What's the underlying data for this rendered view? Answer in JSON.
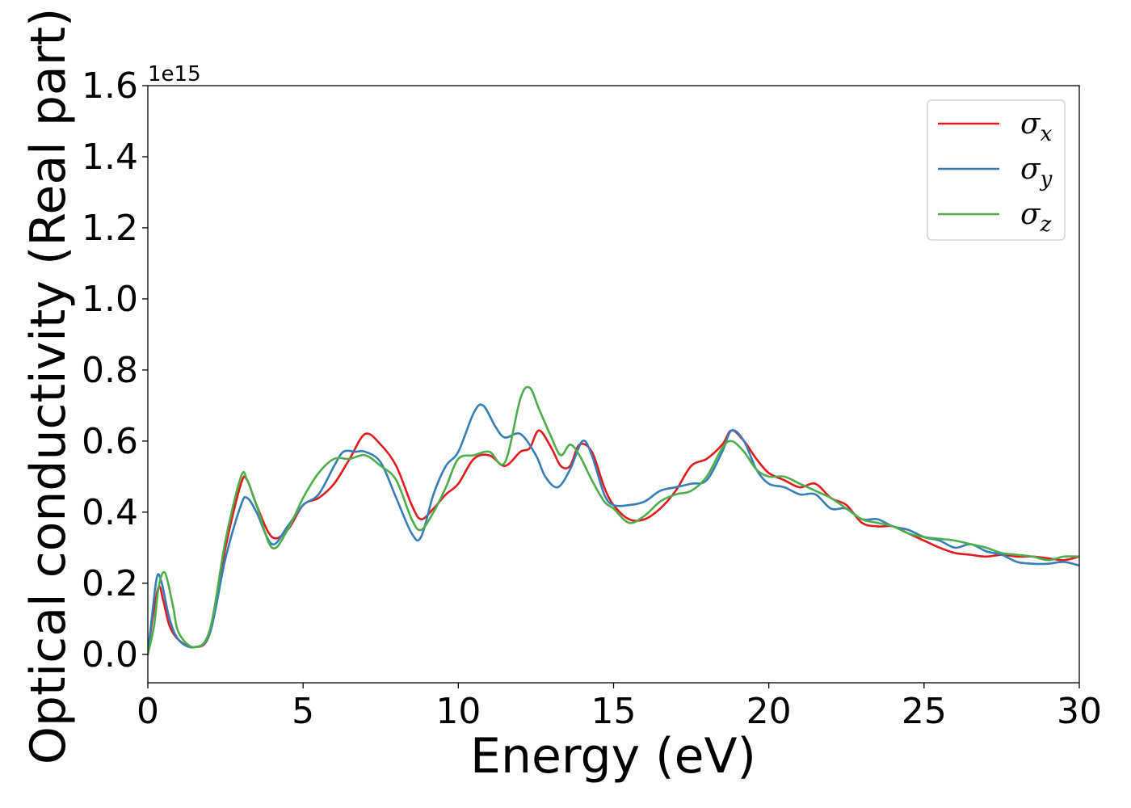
{
  "chart_data": {
    "type": "line",
    "xlabel": "Energy (eV)",
    "ylabel": "Optical conductivity (Real part)",
    "y_offset_label": "1e15",
    "xlim": [
      0,
      30
    ],
    "ylim": [
      -0.08,
      1.6
    ],
    "xticks": [
      0,
      5,
      10,
      15,
      20,
      25,
      30
    ],
    "xtick_labels": [
      "0",
      "5",
      "10",
      "15",
      "20",
      "25",
      "30"
    ],
    "yticks": [
      0.0,
      0.2,
      0.4,
      0.6,
      0.8,
      1.0,
      1.2,
      1.4,
      1.6
    ],
    "ytick_labels": [
      "0.0",
      "0.2",
      "0.4",
      "0.6",
      "0.8",
      "1.0",
      "1.2",
      "1.4",
      "1.6"
    ],
    "grid": false,
    "legend_position": "top-right",
    "series": [
      {
        "name": "σ_x",
        "label_base": "σ",
        "label_sub": "x",
        "color": "#e41a1c",
        "points": [
          [
            0,
            0.0
          ],
          [
            0.15,
            0.1
          ],
          [
            0.35,
            0.19
          ],
          [
            0.5,
            0.15
          ],
          [
            0.7,
            0.08
          ],
          [
            1.0,
            0.04
          ],
          [
            1.5,
            0.02
          ],
          [
            2.0,
            0.06
          ],
          [
            2.5,
            0.3
          ],
          [
            3.0,
            0.48
          ],
          [
            3.2,
            0.49
          ],
          [
            3.5,
            0.42
          ],
          [
            4.0,
            0.33
          ],
          [
            4.5,
            0.35
          ],
          [
            5.0,
            0.42
          ],
          [
            5.5,
            0.44
          ],
          [
            6.0,
            0.48
          ],
          [
            6.5,
            0.55
          ],
          [
            7.0,
            0.62
          ],
          [
            7.5,
            0.59
          ],
          [
            8.0,
            0.53
          ],
          [
            8.5,
            0.42
          ],
          [
            8.8,
            0.38
          ],
          [
            9.2,
            0.41
          ],
          [
            9.6,
            0.45
          ],
          [
            10.0,
            0.48
          ],
          [
            10.5,
            0.55
          ],
          [
            11.0,
            0.56
          ],
          [
            11.5,
            0.53
          ],
          [
            12.0,
            0.57
          ],
          [
            12.3,
            0.58
          ],
          [
            12.6,
            0.63
          ],
          [
            13.0,
            0.58
          ],
          [
            13.3,
            0.53
          ],
          [
            13.6,
            0.53
          ],
          [
            13.9,
            0.59
          ],
          [
            14.3,
            0.57
          ],
          [
            14.7,
            0.47
          ],
          [
            15.0,
            0.42
          ],
          [
            15.5,
            0.38
          ],
          [
            16.0,
            0.38
          ],
          [
            16.5,
            0.41
          ],
          [
            17.0,
            0.46
          ],
          [
            17.5,
            0.53
          ],
          [
            18.0,
            0.55
          ],
          [
            18.5,
            0.59
          ],
          [
            18.8,
            0.63
          ],
          [
            19.2,
            0.6
          ],
          [
            19.6,
            0.55
          ],
          [
            20.0,
            0.51
          ],
          [
            20.5,
            0.49
          ],
          [
            21.0,
            0.47
          ],
          [
            21.5,
            0.48
          ],
          [
            22.0,
            0.44
          ],
          [
            22.5,
            0.42
          ],
          [
            23.0,
            0.37
          ],
          [
            23.5,
            0.36
          ],
          [
            24.0,
            0.36
          ],
          [
            24.5,
            0.34
          ],
          [
            25.0,
            0.32
          ],
          [
            25.5,
            0.3
          ],
          [
            26.0,
            0.285
          ],
          [
            26.5,
            0.28
          ],
          [
            27.0,
            0.275
          ],
          [
            27.5,
            0.28
          ],
          [
            28.0,
            0.275
          ],
          [
            28.5,
            0.275
          ],
          [
            29.0,
            0.27
          ],
          [
            29.5,
            0.265
          ],
          [
            30.0,
            0.275
          ]
        ]
      },
      {
        "name": "σ_y",
        "label_base": "σ",
        "label_sub": "y",
        "color": "#377eb8",
        "points": [
          [
            0,
            0.0
          ],
          [
            0.15,
            0.12
          ],
          [
            0.3,
            0.22
          ],
          [
            0.45,
            0.2
          ],
          [
            0.7,
            0.1
          ],
          [
            1.0,
            0.04
          ],
          [
            1.5,
            0.02
          ],
          [
            2.0,
            0.06
          ],
          [
            2.5,
            0.27
          ],
          [
            3.0,
            0.42
          ],
          [
            3.2,
            0.44
          ],
          [
            3.5,
            0.4
          ],
          [
            4.0,
            0.31
          ],
          [
            4.5,
            0.36
          ],
          [
            5.0,
            0.42
          ],
          [
            5.5,
            0.45
          ],
          [
            6.0,
            0.53
          ],
          [
            6.3,
            0.57
          ],
          [
            6.7,
            0.57
          ],
          [
            7.0,
            0.57
          ],
          [
            7.5,
            0.54
          ],
          [
            8.0,
            0.44
          ],
          [
            8.5,
            0.34
          ],
          [
            8.8,
            0.33
          ],
          [
            9.2,
            0.45
          ],
          [
            9.6,
            0.53
          ],
          [
            10.0,
            0.57
          ],
          [
            10.5,
            0.68
          ],
          [
            10.8,
            0.7
          ],
          [
            11.2,
            0.64
          ],
          [
            11.5,
            0.61
          ],
          [
            12.0,
            0.62
          ],
          [
            12.5,
            0.56
          ],
          [
            12.8,
            0.5
          ],
          [
            13.2,
            0.47
          ],
          [
            13.6,
            0.52
          ],
          [
            14.0,
            0.6
          ],
          [
            14.3,
            0.56
          ],
          [
            14.7,
            0.45
          ],
          [
            15.0,
            0.42
          ],
          [
            15.5,
            0.42
          ],
          [
            16.0,
            0.43
          ],
          [
            16.5,
            0.46
          ],
          [
            17.0,
            0.47
          ],
          [
            17.5,
            0.48
          ],
          [
            18.0,
            0.49
          ],
          [
            18.5,
            0.57
          ],
          [
            18.8,
            0.63
          ],
          [
            19.2,
            0.6
          ],
          [
            19.6,
            0.52
          ],
          [
            20.0,
            0.48
          ],
          [
            20.5,
            0.47
          ],
          [
            21.0,
            0.45
          ],
          [
            21.5,
            0.45
          ],
          [
            22.0,
            0.41
          ],
          [
            22.5,
            0.41
          ],
          [
            23.0,
            0.38
          ],
          [
            23.5,
            0.38
          ],
          [
            24.0,
            0.36
          ],
          [
            24.5,
            0.35
          ],
          [
            25.0,
            0.33
          ],
          [
            25.5,
            0.32
          ],
          [
            26.0,
            0.3
          ],
          [
            26.5,
            0.31
          ],
          [
            27.0,
            0.29
          ],
          [
            27.5,
            0.28
          ],
          [
            28.0,
            0.26
          ],
          [
            28.5,
            0.255
          ],
          [
            29.0,
            0.255
          ],
          [
            29.5,
            0.26
          ],
          [
            30.0,
            0.25
          ]
        ]
      },
      {
        "name": "σ_z",
        "label_base": "σ",
        "label_sub": "z",
        "color": "#4daf4a",
        "points": [
          [
            0,
            0.0
          ],
          [
            0.2,
            0.08
          ],
          [
            0.35,
            0.19
          ],
          [
            0.55,
            0.23
          ],
          [
            0.8,
            0.14
          ],
          [
            1.0,
            0.06
          ],
          [
            1.5,
            0.02
          ],
          [
            2.0,
            0.07
          ],
          [
            2.5,
            0.32
          ],
          [
            3.0,
            0.5
          ],
          [
            3.2,
            0.49
          ],
          [
            3.5,
            0.42
          ],
          [
            4.0,
            0.3
          ],
          [
            4.5,
            0.35
          ],
          [
            5.0,
            0.44
          ],
          [
            5.5,
            0.51
          ],
          [
            6.0,
            0.55
          ],
          [
            6.5,
            0.55
          ],
          [
            7.0,
            0.56
          ],
          [
            7.5,
            0.53
          ],
          [
            8.0,
            0.49
          ],
          [
            8.5,
            0.38
          ],
          [
            8.8,
            0.35
          ],
          [
            9.2,
            0.4
          ],
          [
            9.6,
            0.47
          ],
          [
            10.0,
            0.55
          ],
          [
            10.5,
            0.56
          ],
          [
            11.0,
            0.57
          ],
          [
            11.5,
            0.54
          ],
          [
            12.0,
            0.72
          ],
          [
            12.3,
            0.75
          ],
          [
            12.6,
            0.69
          ],
          [
            13.0,
            0.61
          ],
          [
            13.3,
            0.56
          ],
          [
            13.6,
            0.59
          ],
          [
            13.9,
            0.56
          ],
          [
            14.3,
            0.49
          ],
          [
            14.7,
            0.43
          ],
          [
            15.0,
            0.41
          ],
          [
            15.5,
            0.37
          ],
          [
            16.0,
            0.39
          ],
          [
            16.5,
            0.43
          ],
          [
            17.0,
            0.45
          ],
          [
            17.5,
            0.46
          ],
          [
            18.0,
            0.5
          ],
          [
            18.5,
            0.58
          ],
          [
            18.8,
            0.6
          ],
          [
            19.2,
            0.57
          ],
          [
            19.6,
            0.52
          ],
          [
            20.0,
            0.5
          ],
          [
            20.5,
            0.5
          ],
          [
            21.0,
            0.48
          ],
          [
            21.5,
            0.46
          ],
          [
            22.0,
            0.44
          ],
          [
            22.5,
            0.41
          ],
          [
            23.0,
            0.38
          ],
          [
            23.5,
            0.37
          ],
          [
            24.0,
            0.36
          ],
          [
            24.5,
            0.34
          ],
          [
            25.0,
            0.33
          ],
          [
            25.5,
            0.325
          ],
          [
            26.0,
            0.32
          ],
          [
            26.5,
            0.31
          ],
          [
            27.0,
            0.3
          ],
          [
            27.5,
            0.285
          ],
          [
            28.0,
            0.28
          ],
          [
            28.5,
            0.275
          ],
          [
            29.0,
            0.265
          ],
          [
            29.5,
            0.275
          ],
          [
            30.0,
            0.275
          ]
        ]
      }
    ]
  }
}
